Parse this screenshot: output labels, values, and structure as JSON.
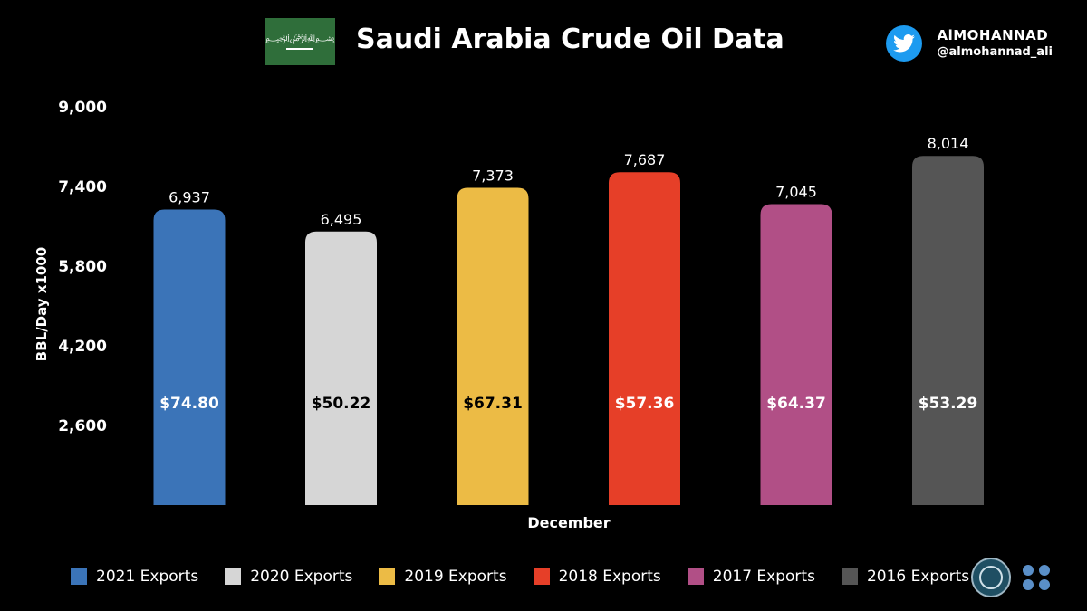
{
  "header": {
    "title": "Saudi Arabia Crude Oil Data",
    "brand_name": "AlMOHANNAD",
    "brand_handle": "@almohannad_ali"
  },
  "chart_data": {
    "type": "bar",
    "title": "Saudi Arabia Crude Oil Data",
    "xlabel": "December",
    "ylabel": "BBL/Day x1000",
    "ylim": [
      1000,
      9000
    ],
    "yticks": [
      "2,600",
      "4,200",
      "5,800",
      "7,400",
      "9,000"
    ],
    "ytick_values": [
      2600,
      4200,
      5800,
      7400,
      9000
    ],
    "categories": [
      "2021 Exports",
      "2020 Exports",
      "2019 Exports",
      "2018 Exports",
      "2017 Exports",
      "2016 Exports"
    ],
    "values": [
      6937,
      6495,
      7373,
      7687,
      7045,
      8014
    ],
    "value_labels": [
      "6,937",
      "6,495",
      "7,373",
      "7,687",
      "7,045",
      "8,014"
    ],
    "price_labels": [
      "$74.80",
      "$50.22",
      "$67.31",
      "$57.36",
      "$64.37",
      "$53.29"
    ],
    "colors": [
      "#3b74b8",
      "#d6d6d6",
      "#ecbb45",
      "#e63f28",
      "#b14f86",
      "#555555"
    ],
    "price_text_colors": [
      "#ffffff",
      "#000000",
      "#000000",
      "#ffffff",
      "#ffffff",
      "#ffffff"
    ],
    "legend_position": "bottom"
  }
}
